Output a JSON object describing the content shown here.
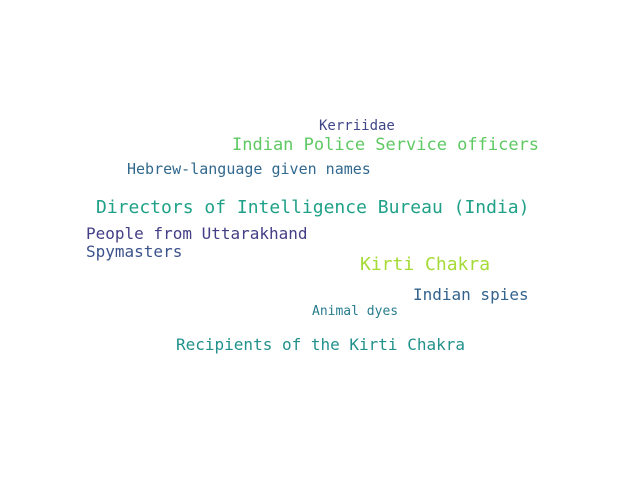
{
  "words": [
    {
      "text": "Kerriidae",
      "color": "#3f4788"
    },
    {
      "text": "Indian Police Service officers",
      "color": "#5ec962"
    },
    {
      "text": "Hebrew-language given names",
      "color": "#31688e"
    },
    {
      "text": "Directors of Intelligence Bureau (India)",
      "color": "#1fa188"
    },
    {
      "text": "People from Uttarakhand",
      "color": "#433e85"
    },
    {
      "text": "Spymasters",
      "color": "#3b528b"
    },
    {
      "text": "Kirti Chakra",
      "color": "#a5db36"
    },
    {
      "text": "Indian spies",
      "color": "#33638d"
    },
    {
      "text": "Animal dyes",
      "color": "#287d8e"
    },
    {
      "text": "Recipients of the Kirti Chakra",
      "color": "#21918c"
    }
  ]
}
